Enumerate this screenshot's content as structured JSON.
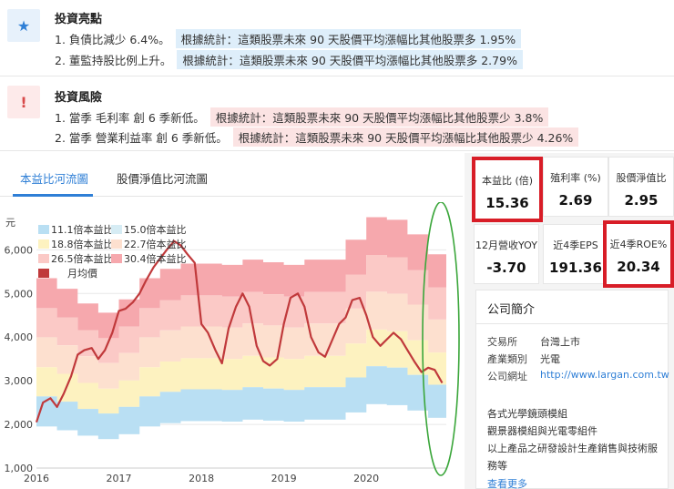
{
  "highlights": {
    "title": "投資亮點",
    "items": [
      {
        "text": "1. 負債比減少 6.4%。",
        "note": "根據統計：這類股票未來 90 天股價平均漲幅比其他股票多 1.95%"
      },
      {
        "text": "2. 董監持股比例上升。",
        "note": "根據統計：這類股票未來 90 天股價平均漲幅比其他股票多 2.79%"
      }
    ]
  },
  "risks": {
    "title": "投資風險",
    "items": [
      {
        "text": "1. 當季 毛利率 創 6 季新低。",
        "note": "根據統計：這類股票未來 90 天股價平均漲幅比其他股票少 3.8%"
      },
      {
        "text": "2. 當季 營業利益率 創 6 季新低。",
        "note": "根據統計：這類股票未來 90 天股價平均漲幅比其他股票少 4.26%"
      }
    ]
  },
  "tabs": [
    "本益比河流圖",
    "股價淨值比河流圖"
  ],
  "metrics": [
    {
      "label": "本益比 (倍)",
      "value": "15.36"
    },
    {
      "label": "殖利率 (%)",
      "value": "2.69"
    },
    {
      "label": "股價淨值比",
      "value": "2.95"
    },
    {
      "label": "12月營收YOY",
      "value": "-3.70"
    },
    {
      "label": "近4季EPS",
      "value": "191.36"
    },
    {
      "label": "近4季ROE%",
      "value": "20.34"
    }
  ],
  "profile": {
    "title": "公司簡介",
    "exchange_label": "交易所",
    "exchange": "台灣上市",
    "industry_label": "產業類別",
    "industry": "光電",
    "website_label": "公司網址",
    "website": "http://www.largan.com.tw",
    "desc": [
      "各式光學鏡頭模組",
      "觀景器模組與光電零組件",
      "以上產品之研發設計生產銷售與技術服",
      "務等"
    ],
    "more": "查看更多"
  },
  "chart_data": {
    "type": "area",
    "ylabel": "元",
    "ylim": [
      1000,
      6800
    ],
    "yticks": [
      "1,000",
      "2,000",
      "3,000",
      "4,000",
      "5,000",
      "6,000"
    ],
    "ytick_values": [
      1000,
      2000,
      3000,
      4000,
      5000,
      6000
    ],
    "xticks": [
      "2016",
      "2017",
      "2018",
      "2019",
      "2020"
    ],
    "xtick_values": [
      2016,
      2017,
      2018,
      2019,
      2020
    ],
    "xlim": [
      2016,
      2020.97
    ],
    "legend": [
      "11.1倍本益比",
      "15.0倍本益比",
      "18.8倍本益比",
      "22.7倍本益比",
      "26.5倍本益比",
      "30.4倍本益比",
      "月均價"
    ],
    "band_colors": [
      "#b9dff3",
      "#d6ecf4",
      "#fdf2c0",
      "#fde0cf",
      "#fbc9c6",
      "#f6a8ad"
    ],
    "line_color": "#c0393b",
    "eps_x": [
      2016.0,
      2016.25,
      2016.5,
      2016.75,
      2017.0,
      2017.25,
      2017.5,
      2017.75,
      2018.0,
      2018.25,
      2018.5,
      2018.75,
      2019.0,
      2019.25,
      2019.5,
      2019.75,
      2020.0,
      2020.25,
      2020.5,
      2020.75,
      2020.97
    ],
    "eps": [
      176,
      168,
      157,
      150,
      160,
      176,
      183,
      187,
      187,
      186,
      190,
      188,
      186,
      190,
      190,
      205,
      222,
      220,
      209,
      194,
      192
    ],
    "price_x": [
      2016.0,
      2016.08,
      2016.17,
      2016.25,
      2016.33,
      2016.42,
      2016.5,
      2016.58,
      2016.67,
      2016.75,
      2016.83,
      2016.92,
      2017.0,
      2017.08,
      2017.17,
      2017.25,
      2017.33,
      2017.42,
      2017.5,
      2017.58,
      2017.67,
      2017.75,
      2017.83,
      2017.92,
      2018.0,
      2018.08,
      2018.17,
      2018.25,
      2018.33,
      2018.42,
      2018.5,
      2018.58,
      2018.67,
      2018.75,
      2018.83,
      2018.92,
      2019.0,
      2019.08,
      2019.17,
      2019.25,
      2019.33,
      2019.42,
      2019.5,
      2019.58,
      2019.67,
      2019.75,
      2019.83,
      2019.92,
      2020.0,
      2020.08,
      2020.17,
      2020.25,
      2020.33,
      2020.42,
      2020.5,
      2020.58,
      2020.67,
      2020.75,
      2020.83,
      2020.92
    ],
    "price": [
      2050,
      2500,
      2600,
      2400,
      2700,
      3100,
      3600,
      3700,
      3750,
      3500,
      3700,
      4100,
      4600,
      4650,
      4800,
      5000,
      5300,
      5600,
      5800,
      6000,
      6200,
      6100,
      5900,
      5700,
      4300,
      4100,
      3700,
      3400,
      4200,
      4700,
      5000,
      4700,
      3800,
      3450,
      3350,
      3500,
      4300,
      4900,
      5000,
      4700,
      4000,
      3650,
      3550,
      3900,
      4300,
      4450,
      4850,
      4900,
      4500,
      4000,
      3800,
      3950,
      4100,
      3950,
      3700,
      3450,
      3200,
      3300,
      3250,
      2950
    ]
  }
}
